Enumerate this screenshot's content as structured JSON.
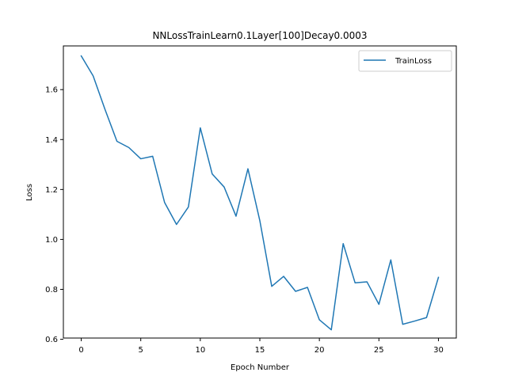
{
  "chart_data": {
    "type": "line",
    "title": "NNLossTrainLearn0.1Layer[100]Decay0.0003",
    "xlabel": "Epoch Number",
    "ylabel": "Loss",
    "xlim": [
      -1.5,
      31.5
    ],
    "ylim": [
      0.605,
      1.775
    ],
    "xticks": [
      0,
      5,
      10,
      15,
      20,
      25,
      30
    ],
    "yticks": [
      0.6,
      0.8,
      1.0,
      1.2,
      1.4,
      1.6
    ],
    "ytick_labels": [
      "0.6",
      "0.8",
      "1.0",
      "1.2",
      "1.4",
      "1.6"
    ],
    "grid": false,
    "legend_position": "top-right",
    "series": [
      {
        "name": "TrainLoss",
        "color": "#1f77b4",
        "x": [
          0,
          1,
          2,
          3,
          4,
          5,
          6,
          7,
          8,
          9,
          10,
          11,
          12,
          13,
          14,
          15,
          16,
          17,
          18,
          19,
          20,
          21,
          22,
          23,
          24,
          25,
          26,
          27,
          28,
          29,
          30
        ],
        "values": [
          1.735,
          1.655,
          1.52,
          1.393,
          1.368,
          1.323,
          1.333,
          1.148,
          1.06,
          1.13,
          1.447,
          1.262,
          1.21,
          1.093,
          1.283,
          1.075,
          0.812,
          0.852,
          0.792,
          0.808,
          0.678,
          0.638,
          0.983,
          0.826,
          0.83,
          0.74,
          0.918,
          0.66,
          0.673,
          0.687,
          0.848
        ]
      }
    ]
  }
}
